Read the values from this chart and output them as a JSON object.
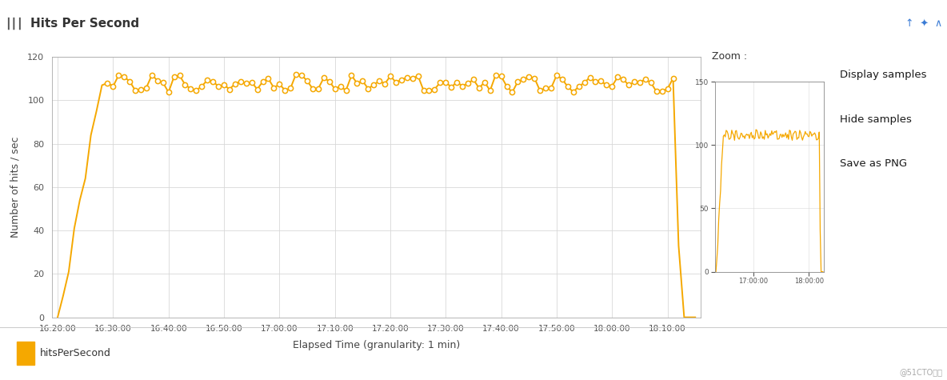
{
  "title": "Hits Per Second",
  "xlabel": "Elapsed Time (granularity: 1 min)",
  "ylabel": "Number of hits / sec",
  "legend_label": "hitsPerSecond",
  "line_color": "#F5A800",
  "marker_color": "#F5A800",
  "bg_color": "#ffffff",
  "header_bg": "#ececec",
  "footer_bg": "#f0f0f0",
  "ylim": [
    0,
    120
  ],
  "yticks": [
    0,
    20,
    40,
    60,
    80,
    100,
    120
  ],
  "x_tick_labels": [
    "16:20:00",
    "16:30:00",
    "16:40:00",
    "16:50:00",
    "17:00:00",
    "17:10:00",
    "17:20:00",
    "17:30:00",
    "17:40:00",
    "17:50:00",
    "18:00:00",
    "18:10:00"
  ],
  "x_tick_positions": [
    0,
    10,
    20,
    30,
    40,
    50,
    60,
    70,
    80,
    90,
    100,
    110
  ],
  "zoom_label": "Zoom :",
  "menu_items": [
    "Display samples",
    "Hide samples",
    "Save as PNG"
  ],
  "zoom_yticks": [
    0,
    50,
    100,
    150
  ],
  "zoom_x_labels": [
    "17:00:00",
    "18:00:00"
  ],
  "total_minutes": 116
}
